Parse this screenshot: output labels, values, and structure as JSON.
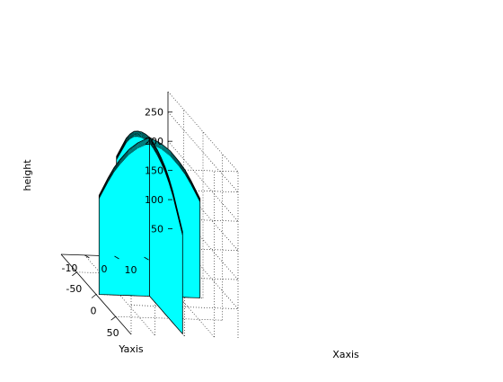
{
  "chart_data": {
    "type": "surface",
    "title": "",
    "xlabel": "Xaxis",
    "ylabel": "Yaxis",
    "zlabel": "height",
    "xticks": [
      "-50",
      "0",
      "50"
    ],
    "yticks": [
      "-10",
      "0",
      "10"
    ],
    "zticks": [
      "50",
      "100",
      "150",
      "200",
      "250"
    ],
    "xlim": [
      -90,
      90
    ],
    "ylim": [
      -18,
      18
    ],
    "zlim": [
      0,
      285
    ],
    "grid": true,
    "surface_color": "#00ffff",
    "edge_color": "#000000",
    "series": [
      {
        "plane": "y=0",
        "x": [
          -85,
          -70,
          -60,
          -50,
          -40,
          -30,
          -20,
          -10,
          0,
          10,
          20,
          30,
          40,
          50,
          60,
          70,
          85
        ],
        "height": [
          175,
          205,
          225,
          240,
          252,
          260,
          266,
          270,
          272,
          270,
          266,
          260,
          252,
          240,
          225,
          205,
          175
        ]
      },
      {
        "plane": "x=0",
        "y": [
          -17,
          -14,
          -12,
          -10,
          -7,
          -4,
          0,
          4,
          7,
          10,
          12,
          14,
          17
        ],
        "height": [
          170,
          200,
          218,
          232,
          250,
          262,
          272,
          262,
          250,
          232,
          218,
          200,
          170
        ]
      }
    ]
  }
}
